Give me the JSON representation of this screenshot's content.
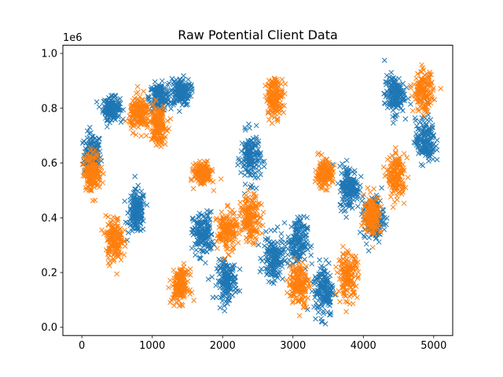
{
  "chart_data": {
    "type": "scatter",
    "title": "Raw Potential Client Data",
    "xlabel": "",
    "ylabel": "",
    "y_offset_label": "1e6",
    "xlim": [
      -270,
      5270
    ],
    "ylim": [
      -30000,
      1030000
    ],
    "x_ticks": [
      0,
      1000,
      2000,
      3000,
      4000,
      5000
    ],
    "x_tick_labels": [
      "0",
      "1000",
      "2000",
      "3000",
      "4000",
      "5000"
    ],
    "y_ticks": [
      0,
      200000,
      400000,
      600000,
      800000,
      1000000
    ],
    "y_tick_labels": [
      "0.0",
      "0.2",
      "0.4",
      "0.6",
      "0.8",
      "1.0"
    ],
    "grid": false,
    "legend": "none",
    "marker": "x",
    "series": [
      {
        "color": "#1f77b4",
        "clusters": [
          {
            "x": 150,
            "y": 630000,
            "sx": 60,
            "sy": 40000
          },
          {
            "x": 420,
            "y": 800000,
            "sx": 60,
            "sy": 20000
          },
          {
            "x": 780,
            "y": 420000,
            "sx": 60,
            "sy": 40000
          },
          {
            "x": 1100,
            "y": 840000,
            "sx": 70,
            "sy": 25000
          },
          {
            "x": 1400,
            "y": 860000,
            "sx": 70,
            "sy": 25000
          },
          {
            "x": 1720,
            "y": 340000,
            "sx": 70,
            "sy": 40000
          },
          {
            "x": 2060,
            "y": 170000,
            "sx": 70,
            "sy": 35000
          },
          {
            "x": 2400,
            "y": 620000,
            "sx": 70,
            "sy": 45000
          },
          {
            "x": 2720,
            "y": 250000,
            "sx": 70,
            "sy": 40000
          },
          {
            "x": 3060,
            "y": 310000,
            "sx": 70,
            "sy": 45000
          },
          {
            "x": 3440,
            "y": 140000,
            "sx": 70,
            "sy": 50000
          },
          {
            "x": 3800,
            "y": 510000,
            "sx": 70,
            "sy": 40000
          },
          {
            "x": 4150,
            "y": 400000,
            "sx": 70,
            "sy": 40000
          },
          {
            "x": 4440,
            "y": 850000,
            "sx": 70,
            "sy": 35000
          },
          {
            "x": 4880,
            "y": 680000,
            "sx": 70,
            "sy": 40000
          }
        ]
      },
      {
        "color": "#ff7f0e",
        "clusters": [
          {
            "x": 150,
            "y": 570000,
            "sx": 60,
            "sy": 35000
          },
          {
            "x": 460,
            "y": 320000,
            "sx": 60,
            "sy": 40000
          },
          {
            "x": 820,
            "y": 780000,
            "sx": 70,
            "sy": 30000
          },
          {
            "x": 1080,
            "y": 740000,
            "sx": 60,
            "sy": 35000
          },
          {
            "x": 1400,
            "y": 150000,
            "sx": 60,
            "sy": 30000
          },
          {
            "x": 1720,
            "y": 560000,
            "sx": 60,
            "sy": 20000
          },
          {
            "x": 2060,
            "y": 350000,
            "sx": 70,
            "sy": 35000
          },
          {
            "x": 2400,
            "y": 400000,
            "sx": 70,
            "sy": 40000
          },
          {
            "x": 2740,
            "y": 840000,
            "sx": 60,
            "sy": 35000
          },
          {
            "x": 3080,
            "y": 160000,
            "sx": 70,
            "sy": 40000
          },
          {
            "x": 3440,
            "y": 560000,
            "sx": 60,
            "sy": 25000
          },
          {
            "x": 3780,
            "y": 190000,
            "sx": 70,
            "sy": 40000
          },
          {
            "x": 4130,
            "y": 410000,
            "sx": 60,
            "sy": 35000
          },
          {
            "x": 4470,
            "y": 550000,
            "sx": 60,
            "sy": 40000
          },
          {
            "x": 4850,
            "y": 860000,
            "sx": 70,
            "sy": 35000
          }
        ]
      }
    ]
  }
}
